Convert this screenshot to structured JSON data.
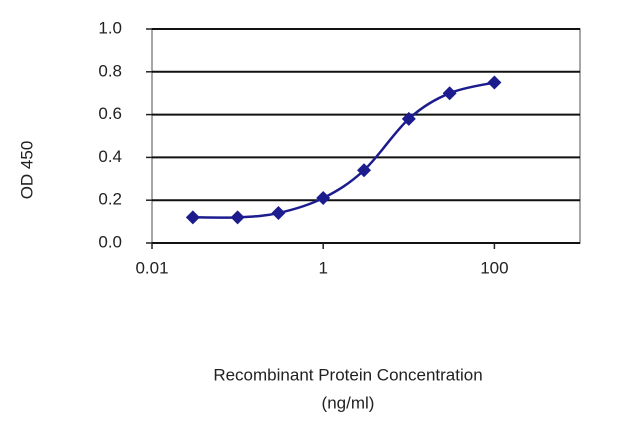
{
  "chart_data": {
    "type": "line",
    "ylabel": "OD 450",
    "xlabel": [
      "Recombinant Protein Concentration",
      "(ng/ml)"
    ],
    "xscale": "log",
    "xlim": [
      0.01,
      1000
    ],
    "xticks": [
      0.01,
      1,
      100
    ],
    "ylim": [
      0,
      1
    ],
    "yticks": [
      {
        "value": 0,
        "label": "0.0"
      },
      0.2,
      0.4,
      0.6,
      0.8,
      {
        "value": 1,
        "label": "1.0"
      }
    ],
    "grid": true,
    "series": [
      {
        "color": "#1c1c8f",
        "x": [
          0.03,
          0.1,
          0.3,
          1,
          3,
          10,
          30,
          100
        ],
        "values": [
          0.12,
          0.12,
          0.14,
          0.21,
          0.34,
          0.58,
          0.7,
          0.75
        ]
      }
    ]
  }
}
